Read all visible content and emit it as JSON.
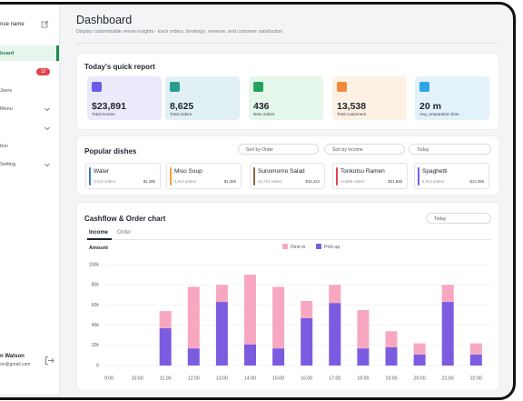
{
  "sidebar": {
    "venue": "nue name",
    "items": [
      "board",
      "Jsers",
      "Menu",
      "tion",
      "Setting"
    ],
    "badge": "12",
    "user": {
      "name": "n Watson",
      "email": "on@gmail.com"
    }
  },
  "header": {
    "title": "Dashboard",
    "subtitle": "Display customizable venue insights - track orders, bookings, revenue, and customer satisfaction"
  },
  "quick_report": {
    "title": "Today's quick report",
    "cards": [
      {
        "value": "$23,891",
        "label": "Total income"
      },
      {
        "value": "8,625",
        "label": "Total orders"
      },
      {
        "value": "436",
        "label": "New orders"
      },
      {
        "value": "13,538",
        "label": "Total customers"
      },
      {
        "value": "20 m",
        "label": "Avg. preparation time"
      }
    ]
  },
  "popular_dishes": {
    "title": "Popular dishes",
    "filters": [
      "Sort by Order",
      "Sort by Income",
      "Today"
    ],
    "dishes": [
      {
        "name": "Water",
        "orders": "3,814 orders",
        "income": "$1,380",
        "color": "#3b82c4"
      },
      {
        "name": "Miso Soup",
        "orders": "3,814 orders",
        "income": "$1,360",
        "color": "#f0a23c"
      },
      {
        "name": "Sunomomo Salad",
        "orders": "12,710 orders",
        "income": "$15,224",
        "color": "#8a6a3c"
      },
      {
        "name": "Tonkotsu Ramen",
        "orders": "14,800 orders",
        "income": "$21,560",
        "color": "#e0464e"
      },
      {
        "name": "Spaghetti",
        "orders": "8,914 orders",
        "income": "$12,056",
        "color": "#7b5ce0"
      }
    ]
  },
  "chart_data": {
    "type": "bar",
    "stacked": true,
    "title": "Cashflow & Order chart",
    "filter": "Today",
    "tabs": [
      "Income",
      "Order"
    ],
    "y_label": "Amount",
    "categories": [
      "9:00",
      "10:00",
      "11:00",
      "12:00",
      "13:00",
      "14:00",
      "15:00",
      "16:00",
      "17:00",
      "18:00",
      "19:00",
      "20:00",
      "21:00",
      "22:00"
    ],
    "series": [
      {
        "name": "Dine-in",
        "color": "#f7a8c0",
        "values": [
          0,
          0,
          17000,
          61000,
          17000,
          69000,
          61000,
          17000,
          18000,
          38000,
          16000,
          11000,
          17000,
          11000
        ]
      },
      {
        "name": "Pick-up",
        "color": "#7b5ce0",
        "values": [
          0,
          0,
          37000,
          17000,
          63000,
          21000,
          17000,
          47000,
          62000,
          17000,
          18000,
          11000,
          63000,
          11000
        ]
      }
    ],
    "ylim": [
      0,
      100000
    ],
    "yticks": [
      0,
      {
        "value": 20000,
        "label": "20k"
      },
      {
        "value": 40000,
        "label": "40k"
      },
      {
        "value": 60000,
        "label": "60k"
      },
      {
        "value": 80000,
        "label": "80k"
      },
      {
        "value": 100000,
        "label": "100k"
      }
    ],
    "grid": true
  }
}
